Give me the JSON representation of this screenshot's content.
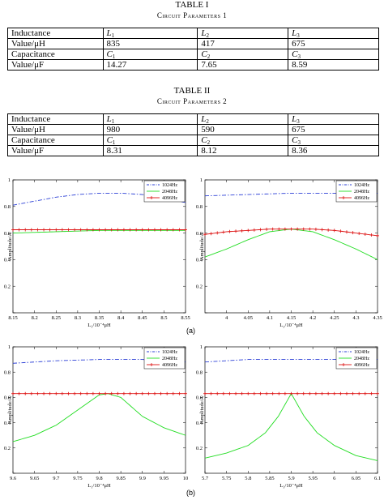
{
  "table1": {
    "caption": "TABLE I",
    "subcaption": "Circuit Parameters 1",
    "rows": [
      {
        "c0": "Inductance",
        "c1": "L",
        "s1": "1",
        "c2": "L",
        "s2": "2",
        "c3": "L",
        "s3": "3"
      },
      {
        "c0": "Value/μH",
        "c1": "835",
        "s1": "",
        "c2": "417",
        "s2": "",
        "c3": "675",
        "s3": ""
      },
      {
        "c0": "Capacitance",
        "c1": "C",
        "s1": "1",
        "c2": "C",
        "s2": "2",
        "c3": "C",
        "s3": "3"
      },
      {
        "c0": "Value/μF",
        "c1": "14.27",
        "s1": "",
        "c2": "7.65",
        "s2": "",
        "c3": "8.59",
        "s3": ""
      }
    ]
  },
  "table2": {
    "caption": "TABLE II",
    "subcaption": "Circuit Parameters 2",
    "rows": [
      {
        "c0": "Inductance",
        "c1": "L",
        "s1": "1",
        "c2": "L",
        "s2": "2",
        "c3": "L",
        "s3": "3"
      },
      {
        "c0": "Value/μH",
        "c1": "980",
        "s1": "",
        "c2": "590",
        "s2": "",
        "c3": "675",
        "s3": ""
      },
      {
        "c0": "Capacitance",
        "c1": "C",
        "s1": "1",
        "c2": "C",
        "s2": "2",
        "c3": "C",
        "s3": "3"
      },
      {
        "c0": "Value/μF",
        "c1": "8.31",
        "s1": "",
        "c2": "8.12",
        "s2": "",
        "c3": "8.36",
        "s3": ""
      }
    ]
  },
  "figure_labels": {
    "a": "(a)",
    "b": "(b)"
  },
  "colors": {
    "f1024": "#2b3fd6",
    "f2048": "#22dd22",
    "f4096": "#dd1111"
  },
  "chart_data": [
    {
      "id": "a-left",
      "type": "line",
      "xlabel": "L₁/10⁻⁴μH",
      "ylabel": "Amplitude/A",
      "xlim": [
        8.15,
        8.55
      ],
      "ylim": [
        0,
        1
      ],
      "xticks": [
        8.15,
        8.2,
        8.25,
        8.3,
        8.35,
        8.4,
        8.45,
        8.5,
        8.55
      ],
      "xtick_labels": [
        "8.15",
        "8.2",
        "8.25",
        "8.3",
        "8.35",
        "8.4",
        "8.45",
        "8.5",
        "8.55"
      ],
      "yticks": [
        0,
        0.2,
        0.4,
        0.6,
        0.8,
        1
      ],
      "ytick_labels": [
        "",
        "0.2",
        "0.4",
        "0.6",
        "0.8",
        "1"
      ],
      "legend_placement": "top-right",
      "grid": false,
      "series": [
        {
          "name": "1024Hz",
          "x": [
            8.15,
            8.2,
            8.25,
            8.3,
            8.35,
            8.4,
            8.45,
            8.5,
            8.55
          ],
          "values": [
            0.81,
            0.84,
            0.87,
            0.89,
            0.9,
            0.9,
            0.89,
            0.86,
            0.83
          ]
        },
        {
          "name": "2048Hz",
          "x": [
            8.15,
            8.25,
            8.35,
            8.45,
            8.55
          ],
          "values": [
            0.6,
            0.61,
            0.62,
            0.62,
            0.62
          ]
        },
        {
          "name": "4096Hz",
          "x": [
            8.15,
            8.2,
            8.25,
            8.3,
            8.35,
            8.4,
            8.45,
            8.5,
            8.55
          ],
          "values": [
            0.625,
            0.625,
            0.625,
            0.625,
            0.625,
            0.625,
            0.625,
            0.625,
            0.625
          ]
        }
      ]
    },
    {
      "id": "a-right",
      "type": "line",
      "xlabel": "L₂/10⁻⁴μH",
      "ylabel": "Amplitude/A",
      "xlim": [
        3.95,
        4.35
      ],
      "ylim": [
        0,
        1
      ],
      "xticks": [
        4,
        4.05,
        4.1,
        4.15,
        4.2,
        4.25,
        4.3,
        4.35
      ],
      "xtick_labels": [
        "4",
        "4.05",
        "4.1",
        "4.15",
        "4.2",
        "4.25",
        "4.3",
        "4.35"
      ],
      "yticks": [
        0,
        0.2,
        0.4,
        0.6,
        0.8,
        1
      ],
      "ytick_labels": [
        "",
        "0.2",
        "0.4",
        "0.6",
        "0.8",
        "1"
      ],
      "legend_placement": "top-right",
      "grid": false,
      "series": [
        {
          "name": "1024Hz",
          "x": [
            3.95,
            4.05,
            4.15,
            4.25,
            4.35
          ],
          "values": [
            0.88,
            0.89,
            0.9,
            0.9,
            0.9
          ]
        },
        {
          "name": "2048Hz",
          "x": [
            3.95,
            4.0,
            4.05,
            4.1,
            4.15,
            4.2,
            4.25,
            4.3,
            4.35
          ],
          "values": [
            0.42,
            0.48,
            0.55,
            0.61,
            0.63,
            0.61,
            0.55,
            0.48,
            0.4
          ]
        },
        {
          "name": "4096Hz",
          "x": [
            3.95,
            4.0,
            4.05,
            4.1,
            4.15,
            4.2,
            4.25,
            4.3,
            4.35
          ],
          "values": [
            0.59,
            0.61,
            0.62,
            0.63,
            0.63,
            0.63,
            0.62,
            0.6,
            0.58
          ]
        }
      ]
    },
    {
      "id": "b-left",
      "type": "line",
      "xlabel": "L₁/10⁻⁴μH",
      "ylabel": "Amplitude/A",
      "xlim": [
        9.6,
        10
      ],
      "ylim": [
        0,
        1
      ],
      "xticks": [
        9.6,
        9.65,
        9.7,
        9.75,
        9.8,
        9.85,
        9.9,
        9.95,
        10
      ],
      "xtick_labels": [
        "9.6",
        "9.65",
        "9.7",
        "9.75",
        "9.8",
        "9.85",
        "9.9",
        "9.95",
        "10"
      ],
      "yticks": [
        0,
        0.2,
        0.4,
        0.6,
        0.8,
        1
      ],
      "ytick_labels": [
        "",
        "0.2",
        "0.4",
        "0.6",
        "0.8",
        "1"
      ],
      "legend_placement": "top-right",
      "grid": false,
      "series": [
        {
          "name": "1024Hz",
          "x": [
            9.6,
            9.7,
            9.8,
            9.9,
            10
          ],
          "values": [
            0.87,
            0.89,
            0.9,
            0.9,
            0.88
          ]
        },
        {
          "name": "2048Hz",
          "x": [
            9.6,
            9.65,
            9.7,
            9.75,
            9.8,
            9.82,
            9.85,
            9.9,
            9.95,
            10
          ],
          "values": [
            0.25,
            0.3,
            0.38,
            0.5,
            0.62,
            0.63,
            0.6,
            0.45,
            0.36,
            0.3
          ]
        },
        {
          "name": "4096Hz",
          "x": [
            9.6,
            9.65,
            9.7,
            9.75,
            9.8,
            9.85,
            9.9,
            9.95,
            10
          ],
          "values": [
            0.63,
            0.63,
            0.63,
            0.63,
            0.63,
            0.63,
            0.63,
            0.63,
            0.63
          ]
        }
      ]
    },
    {
      "id": "b-right",
      "type": "line",
      "xlabel": "L₃/10⁻⁴μH",
      "ylabel": "Amplitude/A",
      "xlim": [
        5.7,
        6.1
      ],
      "ylim": [
        0,
        1
      ],
      "xticks": [
        5.7,
        5.75,
        5.8,
        5.85,
        5.9,
        5.95,
        6,
        6.05,
        6.1
      ],
      "xtick_labels": [
        "5.7",
        "5.75",
        "5.8",
        "5.85",
        "5.9",
        "5.95",
        "6",
        "6.05",
        "6.1"
      ],
      "yticks": [
        0,
        0.2,
        0.4,
        0.6,
        0.8,
        1
      ],
      "ytick_labels": [
        "",
        "0.2",
        "0.4",
        "0.6",
        "0.8",
        "1"
      ],
      "legend_placement": "top-right",
      "grid": false,
      "series": [
        {
          "name": "1024Hz",
          "x": [
            5.7,
            5.8,
            5.9,
            6.0,
            6.1
          ],
          "values": [
            0.88,
            0.9,
            0.9,
            0.9,
            0.9
          ]
        },
        {
          "name": "2048Hz",
          "x": [
            5.7,
            5.75,
            5.8,
            5.84,
            5.87,
            5.9,
            5.93,
            5.96,
            6.0,
            6.05,
            6.1
          ],
          "values": [
            0.12,
            0.16,
            0.22,
            0.32,
            0.45,
            0.63,
            0.45,
            0.32,
            0.22,
            0.14,
            0.1
          ]
        },
        {
          "name": "4096Hz",
          "x": [
            5.7,
            5.75,
            5.8,
            5.85,
            5.9,
            5.95,
            6,
            6.05,
            6.1
          ],
          "values": [
            0.63,
            0.63,
            0.63,
            0.63,
            0.63,
            0.63,
            0.63,
            0.63,
            0.63
          ]
        }
      ]
    }
  ]
}
